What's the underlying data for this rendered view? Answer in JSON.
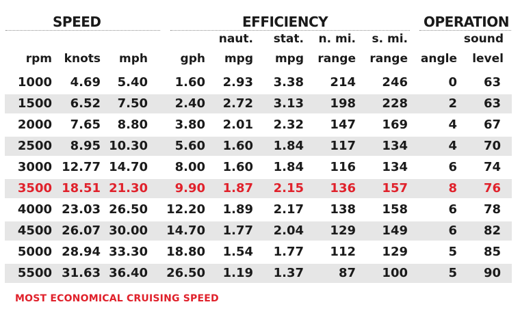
{
  "groups": {
    "speed": "SPEED",
    "efficiency": "EFFICIENCY",
    "operation": "OPERATION"
  },
  "columns": [
    {
      "top": "",
      "bottom": "rpm"
    },
    {
      "top": "",
      "bottom": "knots"
    },
    {
      "top": "",
      "bottom": "mph"
    },
    {
      "top": "",
      "bottom": "gph"
    },
    {
      "top": "naut.",
      "bottom": "mpg"
    },
    {
      "top": "stat.",
      "bottom": "mpg"
    },
    {
      "top": "n. mi.",
      "bottom": "range"
    },
    {
      "top": "s. mi.",
      "bottom": "range"
    },
    {
      "top": "",
      "bottom": "angle"
    },
    {
      "top": "sound",
      "bottom": "level"
    }
  ],
  "rows": [
    [
      "1000",
      "4.69",
      "5.40",
      "1.60",
      "2.93",
      "3.38",
      "214",
      "246",
      "0",
      "63"
    ],
    [
      "1500",
      "6.52",
      "7.50",
      "2.40",
      "2.72",
      "3.13",
      "198",
      "228",
      "2",
      "63"
    ],
    [
      "2000",
      "7.65",
      "8.80",
      "3.80",
      "2.01",
      "2.32",
      "147",
      "169",
      "4",
      "67"
    ],
    [
      "2500",
      "8.95",
      "10.30",
      "5.60",
      "1.60",
      "1.84",
      "117",
      "134",
      "4",
      "70"
    ],
    [
      "3000",
      "12.77",
      "14.70",
      "8.00",
      "1.60",
      "1.84",
      "116",
      "134",
      "6",
      "74"
    ],
    [
      "3500",
      "18.51",
      "21.30",
      "9.90",
      "1.87",
      "2.15",
      "136",
      "157",
      "8",
      "76"
    ],
    [
      "4000",
      "23.03",
      "26.50",
      "12.20",
      "1.89",
      "2.17",
      "138",
      "158",
      "6",
      "78"
    ],
    [
      "4500",
      "26.07",
      "30.00",
      "14.70",
      "1.77",
      "2.04",
      "129",
      "149",
      "6",
      "82"
    ],
    [
      "5000",
      "28.94",
      "33.30",
      "18.80",
      "1.54",
      "1.77",
      "112",
      "129",
      "5",
      "85"
    ],
    [
      "5500",
      "31.63",
      "36.40",
      "26.50",
      "1.19",
      "1.37",
      "87",
      "100",
      "5",
      "90"
    ]
  ],
  "highlight_row": 5,
  "highlight_color": "#e0212b",
  "shade_color": "#e6e6e6",
  "footnote": "MOST ECONOMICAL CRUISING SPEED"
}
